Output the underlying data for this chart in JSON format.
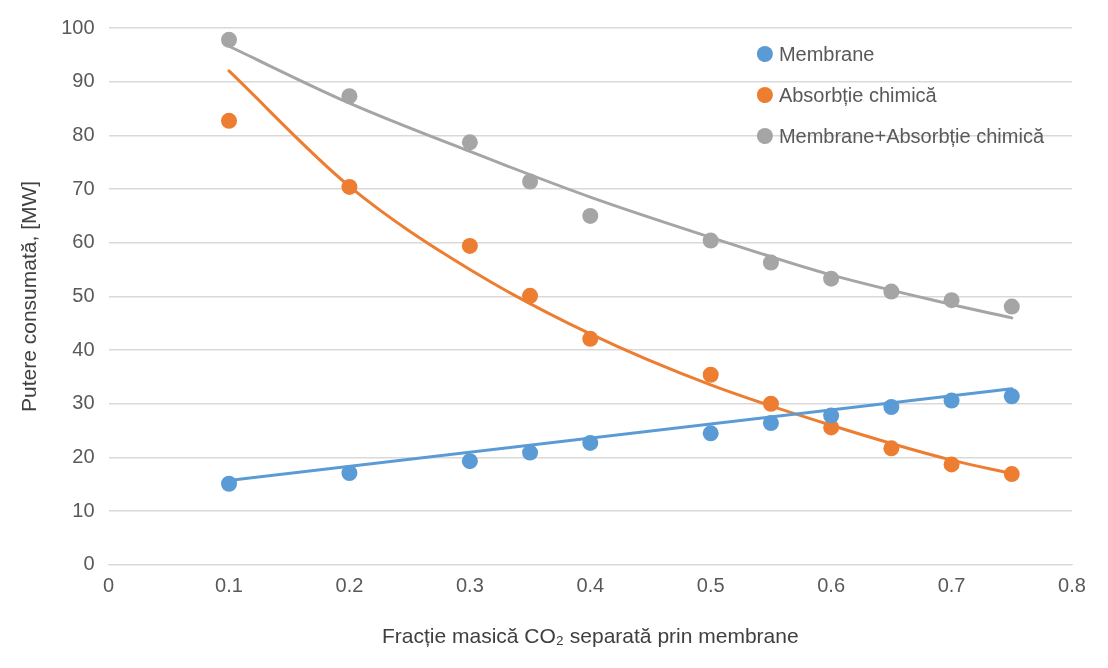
{
  "chart_data": {
    "type": "scatter",
    "xlabel": "Fracție masică CO₂ separată prin membrane",
    "ylabel": "Putere consumată, [MW]",
    "xlim": [
      0,
      0.8
    ],
    "xticks": [
      0,
      0.1,
      0.2,
      0.3,
      0.4,
      0.5,
      0.6,
      0.7,
      0.8
    ],
    "ylim": [
      0,
      100
    ],
    "yticks": [
      0,
      10,
      20,
      30,
      40,
      50,
      60,
      70,
      80,
      90,
      100
    ],
    "grid": "y",
    "legend": "top right",
    "marker": "circle",
    "series": [
      {
        "name": "Membrane",
        "color": "#5b9bd5",
        "x": [
          0.1,
          0.2,
          0.3,
          0.35,
          0.4,
          0.5,
          0.55,
          0.6,
          0.65,
          0.7,
          0.75
        ],
        "values": [
          15.1,
          17.1,
          19.3,
          20.9,
          22.7,
          24.5,
          26.4,
          27.8,
          29.4,
          30.6,
          31.4
        ]
      },
      {
        "name": "Absorbție chimică",
        "color": "#ed7d31",
        "x": [
          0.1,
          0.2,
          0.3,
          0.35,
          0.4,
          0.5,
          0.55,
          0.6,
          0.65,
          0.7,
          0.75
        ],
        "values": [
          82.7,
          70.4,
          59.4,
          50.1,
          42.1,
          35.4,
          30,
          25.6,
          21.7,
          18.7,
          16.9
        ]
      },
      {
        "name": "Membrane+Absorbție chimică",
        "color": "#a5a5a5",
        "x": [
          0.1,
          0.2,
          0.3,
          0.35,
          0.4,
          0.5,
          0.55,
          0.6,
          0.65,
          0.7,
          0.75
        ],
        "values": [
          97.8,
          87.3,
          78.7,
          71.4,
          65,
          60.4,
          56.3,
          53.3,
          50.9,
          49.3,
          48.1
        ]
      },
      {
        "type": "line",
        "marker": "none",
        "color": "#5b9bd5",
        "x": [
          0.1,
          0.75
        ],
        "values": [
          15.7,
          32.8
        ]
      },
      {
        "type": "line",
        "marker": "none",
        "color": "#ed7d31",
        "x": [
          0.1,
          0.2,
          0.3,
          0.4,
          0.5,
          0.6,
          0.7,
          0.75
        ],
        "values": [
          92,
          70.5,
          55,
          43,
          33.5,
          26,
          19.5,
          17
        ]
      },
      {
        "type": "line",
        "marker": "none",
        "color": "#a5a5a5",
        "x": [
          0.1,
          0.2,
          0.3,
          0.4,
          0.5,
          0.6,
          0.7,
          0.75
        ],
        "values": [
          96.6,
          86,
          77,
          68.5,
          61,
          54,
          48.5,
          46
        ]
      }
    ]
  }
}
